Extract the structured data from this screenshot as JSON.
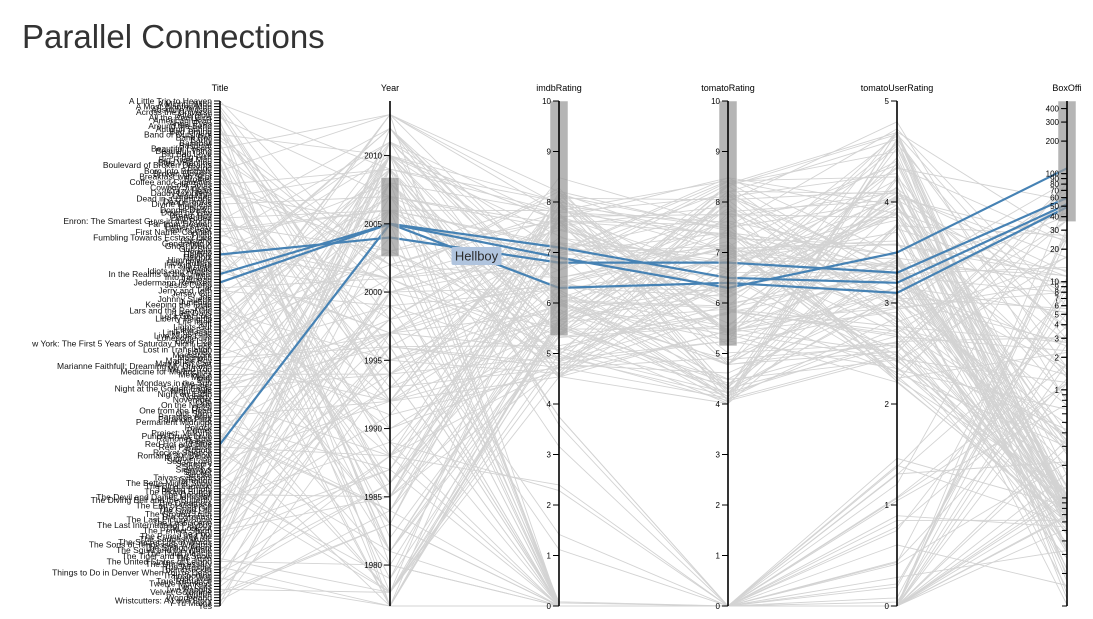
{
  "page": {
    "title": "Parallel Connections"
  },
  "colors": {
    "highlight": "#4682b4",
    "background_line": "#d3d3d3",
    "brush": "#999999",
    "tooltip": "#b0c4de"
  },
  "chart_data": {
    "type": "parallel-coordinates",
    "dimensions": [
      {
        "key": "Title",
        "label": "Title",
        "scale": "ordinal"
      },
      {
        "key": "Year",
        "label": "Year",
        "scale": "linear",
        "domain": [
          1977,
          2014
        ],
        "ticks": [
          1980,
          1985,
          1990,
          1995,
          2000,
          2005,
          2010
        ],
        "brush": [
          2002.6,
          2008.4
        ]
      },
      {
        "key": "imdbRating",
        "label": "imdbRating",
        "scale": "linear",
        "domain": [
          0,
          10
        ],
        "ticks": [
          0,
          1,
          2,
          3,
          4,
          5,
          6,
          7,
          8,
          9,
          10
        ],
        "brush": [
          5.35,
          10
        ]
      },
      {
        "key": "tomatoRating",
        "label": "tomatoRating",
        "scale": "linear",
        "domain": [
          0,
          10
        ],
        "ticks": [
          0,
          1,
          2,
          3,
          4,
          5,
          6,
          7,
          8,
          9,
          10
        ],
        "brush": [
          5.15,
          10
        ]
      },
      {
        "key": "tomatoUserRating",
        "label": "tomatoUserRating",
        "scale": "linear",
        "domain": [
          0,
          5
        ],
        "ticks": [
          0,
          1,
          2,
          3,
          4,
          5
        ]
      },
      {
        "key": "BoxOffice",
        "label": "BoxOffi",
        "scale": "log",
        "domain": [
          0.01,
          470
        ],
        "ticks": [
          400,
          300,
          200,
          100,
          90,
          80,
          70,
          60,
          50,
          40,
          30,
          20,
          10,
          9,
          8,
          7,
          6,
          5,
          4,
          3,
          2,
          1
        ],
        "brush": [
          36,
          470
        ]
      }
    ],
    "titles": [
      "A Little Trip to Heaven",
      "A Mighty Wind",
      "A Most Wanted Man",
      "Absolute Wilson",
      "Across the Universe",
      "Afterglow",
      "All the Real Girls",
      "American Heart",
      "Angel Eyes",
      "Around the Bend",
      "Autumn Spring",
      "Bad Timing",
      "Band of Outsiders",
      "Bank Roll",
      "Barfly",
      "Baseball",
      "Basquiat",
      "Beautiful Losers",
      "Beautiful Thing",
      "Big Bad Love",
      "Big Fish",
      "Big River Man",
      "Blue Valentine",
      "Boulevard of Broken Dreams",
      "Bound",
      "Born Into Brothels",
      "Broken Flowers",
      "Breakfast with Scot",
      "Brother",
      "Coffee and Cigarettes",
      "Cold Souls",
      "Cowboy Junkies",
      "Crazy Heart",
      "Daddy Longlegs",
      "Dead Man",
      "Dead in a Hurricane",
      "Dear Frankie",
      "Divine Madness",
      "Dogtown",
      "Donnie Darko",
      "Down by Law",
      "Dream Boy",
      "Embedded",
      "Enron: The Smartest Guys in the Room",
      "Far from Heaven",
      "Father's Day",
      "Fear of Fear",
      "First Name: Carmen",
      "Flight",
      "Fumbling Towards Ecstasy Live",
      "Gasland",
      "Generation X",
      "Ghost World",
      "Gun Shy",
      "Hedwig",
      "Hellboy",
      "Heights",
      "Himmelweg",
      "Holy Rollers",
      "I'm Still Here",
      "Idlewild",
      "Idiots and Angels",
      "In the Realms of the Unreal",
      "Into the Wild",
      "Jarhead",
      "Jedermann Remixed",
      "Jesus Camp",
      "Jet",
      "Jerry and Tom",
      "Jersey Girl",
      "Joe",
      "Johnny Suede",
      "Junebug",
      "Keeping the Faith",
      "Kids",
      "Lars and the Real Girl",
      "Last Days",
      "Let's Get Lost",
      "Liberty Heights",
      "Life Itself",
      "Lift",
      "Lights Out",
      "Little Fish",
      "Little Odessa",
      "Live Nude Girls",
      "Lonesome Jim",
      "Love Liza",
      "w York: The First 5 Years of Saturday Night Live",
      "Look",
      "Lost in Translation",
      "Lovely",
      "Maelstrom",
      "Magnolia",
      "Mama's Boy",
      "Man Push Cart",
      "Marianne Faithfull: Dreaming My Dreams",
      "Me and You",
      "Medicine for Melancholy",
      "Metallica",
      "Metal",
      "Milk",
      "Mondays in the Sun",
      "Monster",
      "Night at the Golden Eagle",
      "Night Owls",
      "Night on Earth",
      "Nobody",
      "November",
      "Ode",
      "On the Nickel",
      "Once",
      "One from the Heart",
      "Our Song",
      "Paradise Alley",
      "Paranoid Park",
      "Permanent Midnight",
      "Pi",
      "Pollock",
      "Primer",
      "Project: Valkyrie",
      "Punch-Drunk Love",
      "Ramones Raw",
      "Rebels",
      "Red Hot and Blue",
      "Reel Paradise",
      "Robots",
      "Rocket Science",
      "Romaine 30° Below",
      "Rumble Fish",
      "Sea of Love",
      "Secretary",
      "Shrek 2",
      "Sideways",
      "Slacker",
      "Smoke",
      "Taivas sylissäni",
      "Tarnation",
      "The Bette Midler Show",
      "The Big Lebowski",
      "The Big Empty",
      "The Brown Bunny",
      "The Doorbell",
      "The Devil and Daniel Johnston",
      "The Diving Bell and the Butterfly",
      "The Dreamers",
      "The End of Violence",
      "The Good Girl",
      "The Good Life",
      "The Ground Truth",
      "The Gymnast",
      "The Last Picture Show",
      "The Last Scene",
      "The Last International Playboy",
      "The Lookout",
      "The Perfect Storm",
      "The Pool",
      "The Prince and Me",
      "The Saddest Music",
      "The Secret Life of Words",
      "The Sons of Tennessee Williams",
      "The Station Agent",
      "The Squid and the Whale",
      "The Third Miracle",
      "The Tiger and the Snow",
      "The Truth",
      "The United States of Leland",
      "The Unnecessary",
      "The Wrestler",
      "Thumbsucker",
      "Things to Do in Denver When You're Dead",
      "Trainspotting",
      "Trash Wall",
      "True Romance",
      "Twelve Monkeys",
      "Two Girls",
      "Two Rabbits",
      "Velvet Goldmine",
      "Wolfen",
      "Wonderland",
      "Wristcutters: A Love Story",
      "Y Tu Mamá",
      "Yes"
    ],
    "highlighted": [
      {
        "title": "Hellboy",
        "values": {
          "Year": 2004,
          "imdbRating": 6.8,
          "tomatoRating": 6.8,
          "tomatoUserRating": 3.3,
          "BoxOffice": 59.6
        }
      },
      {
        "title": "Jedermann Remixed",
        "values": {
          "Year": 2005,
          "imdbRating": 6.3,
          "tomatoRating": 6.4,
          "tomatoUserRating": 3.1,
          "BoxOffice": 49
        }
      },
      {
        "title": "Red Hot and Blue",
        "values": {
          "Year": 2005,
          "imdbRating": 7.1,
          "tomatoRating": 6.5,
          "tomatoUserRating": 3.2,
          "BoxOffice": 52
        }
      },
      {
        "title": "In the Realms of the Unreal",
        "values": {
          "Year": 2005,
          "imdbRating": 6.9,
          "tomatoRating": 6.3,
          "tomatoUserRating": 3.5,
          "BoxOffice": 112
        }
      }
    ],
    "hover_label": "Hellboy",
    "hover_axis": "imdbRating"
  }
}
